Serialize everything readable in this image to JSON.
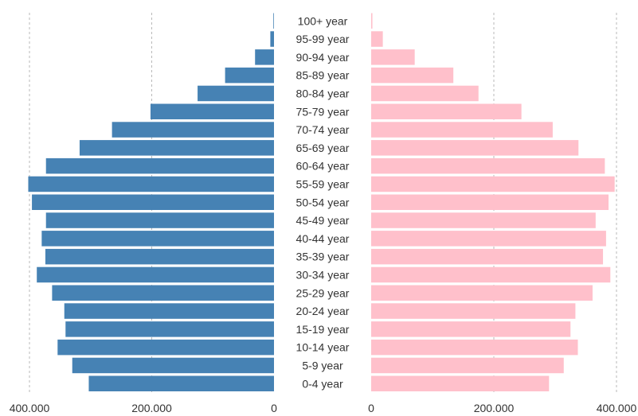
{
  "chart_data": {
    "type": "bar",
    "orientation": "horizontal",
    "layout": "population-pyramid",
    "categories": [
      "100+ year",
      "95-99 year",
      "90-94 year",
      "85-89 year",
      "80-84 year",
      "75-79 year",
      "70-74 year",
      "65-69 year",
      "60-64 year",
      "55-59 year",
      "50-54 year",
      "45-49 year",
      "40-44 year",
      "35-39 year",
      "30-34 year",
      "25-29 year",
      "20-24 year",
      "15-19 year",
      "10-14 year",
      "5-9 year",
      "0-4 year"
    ],
    "series": [
      {
        "side": "left",
        "color": "#4682b4",
        "values": [
          1000,
          6000,
          31000,
          80000,
          125000,
          202000,
          265000,
          318000,
          373000,
          402000,
          396000,
          373000,
          380000,
          374000,
          388000,
          363000,
          343000,
          341000,
          354000,
          330000,
          303000
        ]
      },
      {
        "side": "right",
        "color": "#ffc0cb",
        "values": [
          2000,
          19000,
          71000,
          134000,
          175000,
          245000,
          296000,
          338000,
          381000,
          397000,
          387000,
          366000,
          383000,
          378000,
          390000,
          361000,
          333000,
          325000,
          337000,
          314000,
          290000
        ]
      }
    ],
    "xlim": [
      0,
      400000
    ],
    "left_ticks": [
      "400.000",
      "200.000",
      "0"
    ],
    "right_ticks": [
      "0",
      "200.000",
      "400.000"
    ],
    "tick_values": [
      0,
      200000,
      400000
    ],
    "grid": true
  }
}
